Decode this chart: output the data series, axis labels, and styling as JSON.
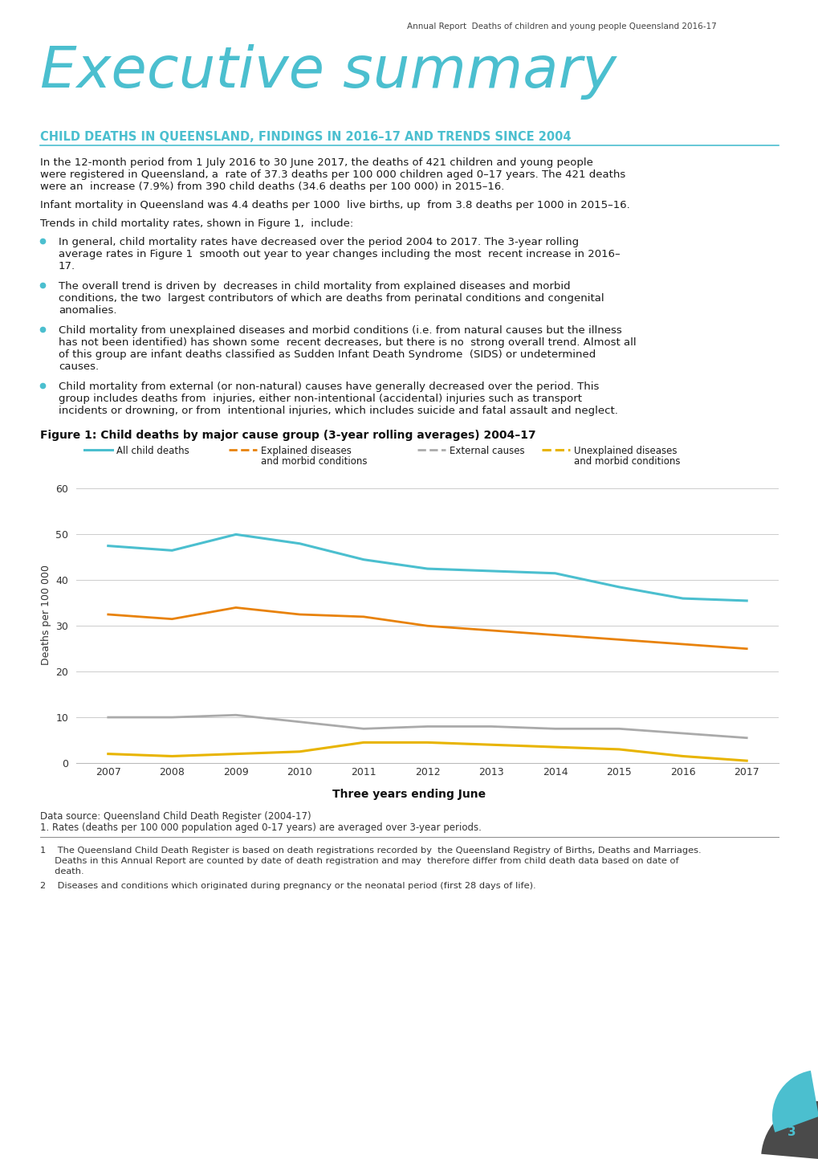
{
  "header_text": "Annual Report  Deaths of children and young people Queensland 2016-17",
  "section_heading": "CHILD DEATHS IN QUEENSLAND, FINDINGS IN 2016–17 AND TRENDS SINCE 2004",
  "para1_line1": "In the 12-month period from 1 July 2016 to 30 June 2017, the deaths of 421 children and young people",
  "para1_line2": "were registered in Queensland, a  rate of 37.3 deaths per 100 000 children aged 0–17 years. The 421 deaths",
  "para1_line3": "were an  increase (7.9%) from 390 child deaths (34.6 deaths per 100 000) in 2015–16.",
  "para2": "Infant mortality in Queensland was 4.4 deaths per 1000  live births, up  from 3.8 deaths per 1000 in 2015–16.",
  "para3": "Trends in child mortality rates, shown in Figure 1,  include:",
  "bullet1_lines": [
    "In general, child mortality rates have decreased over the period 2004 to 2017. The 3-year rolling",
    "average rates in Figure 1  smooth out year to year changes including the most  recent increase in 2016–",
    "17."
  ],
  "bullet2_lines": [
    "The overall trend is driven by  decreases in child mortality from explained diseases and morbid",
    "conditions, the two  largest contributors of which are deaths from perinatal conditions and congenital",
    "anomalies."
  ],
  "bullet3_lines": [
    "Child mortality from unexplained diseases and morbid conditions (i.e. from natural causes but the illness",
    "has not been identified) has shown some  recent decreases, but there is no  strong overall trend. Almost all",
    "of this group are infant deaths classified as Sudden Infant Death Syndrome  (SIDS) or undetermined",
    "causes."
  ],
  "bullet4_lines": [
    "Child mortality from external (or non-natural) causes have generally decreased over the period. This",
    "group includes deaths from  injuries, either non-intentional (accidental) injuries such as transport",
    "incidents or drowning, or from  intentional injuries, which includes suicide and fatal assault and neglect."
  ],
  "figure_title": "Figure 1: Child deaths by major cause group (3-year rolling averages) 2004–17",
  "x_years": [
    2007,
    2008,
    2009,
    2010,
    2011,
    2012,
    2013,
    2014,
    2015,
    2016,
    2017
  ],
  "all_child_deaths": [
    47.5,
    46.5,
    50.0,
    48.0,
    44.5,
    42.5,
    42.0,
    41.5,
    38.5,
    36.0,
    35.5
  ],
  "explained_diseases": [
    32.5,
    31.5,
    34.0,
    32.5,
    32.0,
    30.0,
    29.0,
    28.0,
    27.0,
    26.0,
    25.0
  ],
  "external_causes": [
    10.0,
    10.0,
    10.5,
    9.0,
    7.5,
    8.0,
    8.0,
    7.5,
    7.5,
    6.5,
    5.5
  ],
  "unexplained_diseases": [
    2.0,
    1.5,
    2.0,
    2.5,
    4.5,
    4.5,
    4.0,
    3.5,
    3.0,
    1.5,
    0.5
  ],
  "color_all": "#4BBFCF",
  "color_explained": "#E8820A",
  "color_external": "#AAAAAA",
  "color_unexplained": "#E8B400",
  "color_teal": "#4BBFCF",
  "color_dark": "#3A3A3A",
  "color_text": "#1A1A1A",
  "color_grid": "#CCCCCC",
  "ylim": [
    0,
    65
  ],
  "yticks": [
    0,
    10,
    20,
    30,
    40,
    50,
    60
  ],
  "xlabel": "Three years ending June",
  "ylabel": "Deaths per 100 000",
  "datasource_line1": "Data source: Queensland Child Death Register (2004-17)",
  "datasource_line2": "1. Rates (deaths per 100 000 population aged 0-17 years) are averaged over 3-year periods.",
  "footnote1_line1": "1    The Queensland Child Death Register is based on death registrations recorded by  the Queensland Registry of Births, Deaths and Marriages.",
  "footnote1_line2": "     Deaths in this Annual Report are counted by date of death registration and may  therefore differ from child death data based on date of",
  "footnote1_line3": "     death.",
  "footnote2": "2    Diseases and conditions which originated during pregnancy or the neonatal period (first 28 days of life).",
  "page_number": "3"
}
